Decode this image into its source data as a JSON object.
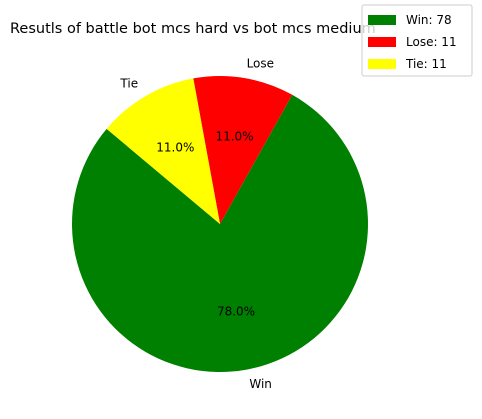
{
  "chart_data": {
    "type": "pie",
    "title": "Resutls of battle bot mcs hard vs bot mcs medium",
    "slices": [
      {
        "label": "Win",
        "value": 78,
        "percent": "78.0%",
        "color": "#008000",
        "legend": "Win: 78"
      },
      {
        "label": "Lose",
        "value": 11,
        "percent": "11.0%",
        "color": "#ff0000",
        "legend": "Lose: 11"
      },
      {
        "label": "Tie",
        "value": 11,
        "percent": "11.0%",
        "color": "#ffff00",
        "legend": "Tie: 11"
      }
    ],
    "start_angle_deg": 140,
    "direction": "counterclockwise",
    "legend_position": "top-right"
  }
}
